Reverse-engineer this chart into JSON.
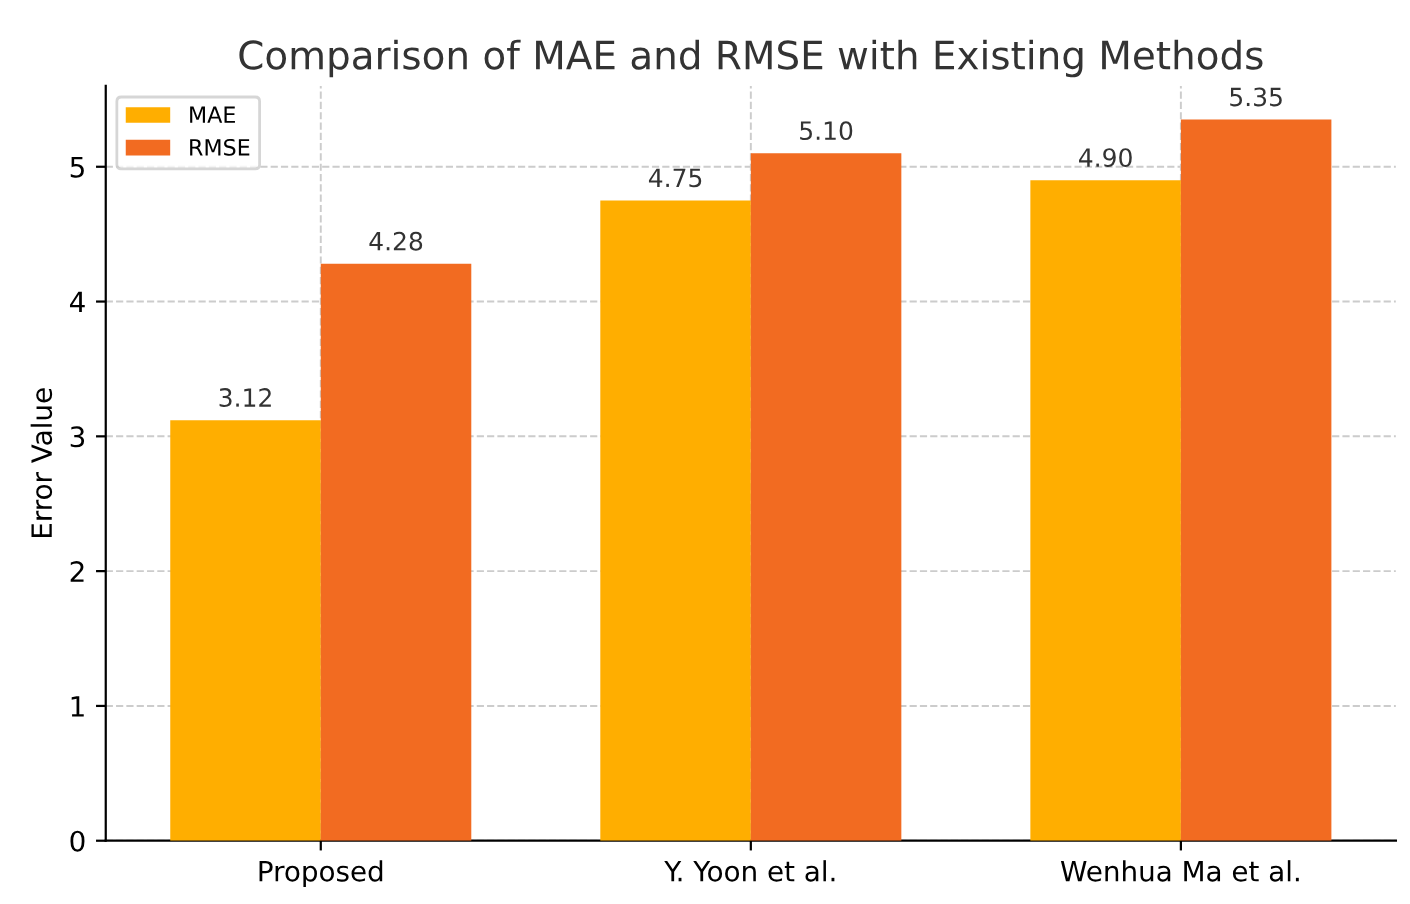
{
  "chart_data": {
    "type": "bar",
    "title": "Comparison of MAE and RMSE with Existing Methods",
    "ylabel": "Error Value",
    "categories": [
      "Proposed",
      "Y. Yoon et al.",
      "Wenhua Ma et al."
    ],
    "series": [
      {
        "name": "MAE",
        "color": "#ffae00",
        "values": [
          3.12,
          4.75,
          4.9
        ]
      },
      {
        "name": "RMSE",
        "color": "#f26b21",
        "values": [
          4.28,
          5.1,
          5.35
        ]
      }
    ],
    "ylim": [
      0,
      5.6
    ],
    "yticks": [
      0,
      1,
      2,
      3,
      4,
      5
    ],
    "grid": true,
    "legend": "top left",
    "value_labels": [
      [
        "3.12",
        "4.75",
        "4.90"
      ],
      [
        "4.28",
        "5.10",
        "5.35"
      ]
    ]
  }
}
